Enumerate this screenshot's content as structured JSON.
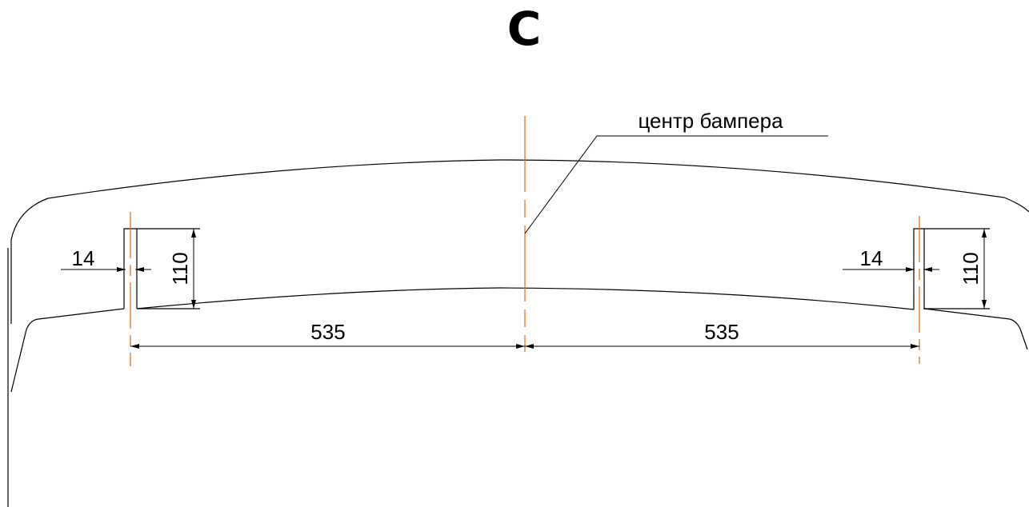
{
  "drawing": {
    "view_label": "C",
    "center_label": "центр бампера",
    "dimensions": {
      "left_offset": "14",
      "right_offset": "14",
      "left_height": "110",
      "right_height": "110",
      "left_span": "535",
      "right_span": "535"
    }
  },
  "colors": {
    "outline": "#000000",
    "centerline": "#e8701c"
  }
}
